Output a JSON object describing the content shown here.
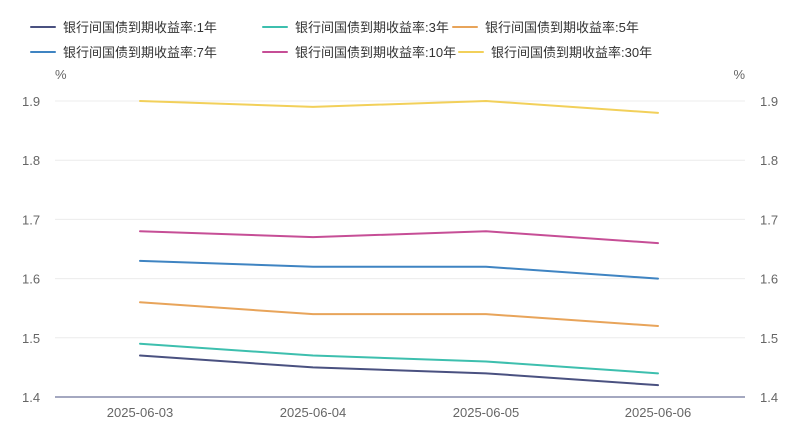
{
  "chart_data": {
    "type": "line",
    "categories": [
      "2025-06-03",
      "2025-06-04",
      "2025-06-05",
      "2025-06-06"
    ],
    "series": [
      {
        "name": "银行间国债到期收益率:1年",
        "color": "#4a5180",
        "values": [
          1.47,
          1.45,
          1.44,
          1.42
        ]
      },
      {
        "name": "银行间国债到期收益率:3年",
        "color": "#3dbfae",
        "values": [
          1.49,
          1.47,
          1.46,
          1.44
        ]
      },
      {
        "name": "银行间国债到期收益率:5年",
        "color": "#e8a45a",
        "values": [
          1.56,
          1.54,
          1.54,
          1.52
        ]
      },
      {
        "name": "银行间国债到期收益率:7年",
        "color": "#3f84c2",
        "values": [
          1.63,
          1.62,
          1.62,
          1.6
        ]
      },
      {
        "name": "银行间国债到期收益率:10年",
        "color": "#c64e96",
        "values": [
          1.68,
          1.67,
          1.68,
          1.66
        ]
      },
      {
        "name": "银行间国债到期收益率:30年",
        "color": "#f2d05a",
        "values": [
          1.9,
          1.89,
          1.9,
          1.88
        ]
      }
    ],
    "y_ticks": [
      "1.4",
      "1.5",
      "1.6",
      "1.7",
      "1.8",
      "1.9"
    ],
    "ylim": [
      1.4,
      1.9
    ],
    "y_unit_left": "%",
    "y_unit_right": "%",
    "grid": true,
    "legend_position": "top-left",
    "axis_color": "#4a5180"
  }
}
